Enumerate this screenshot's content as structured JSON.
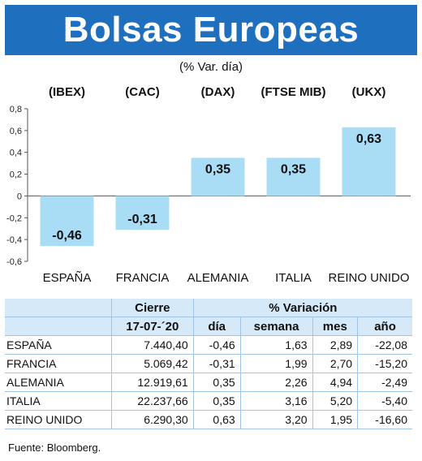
{
  "title": "Bolsas Europeas",
  "subtitle": "(% Var. día)",
  "chart_data": {
    "type": "bar",
    "indices": [
      "(IBEX)",
      "(CAC)",
      "(DAX)",
      "(FTSE MIB)",
      "(UKX)"
    ],
    "categories": [
      "ESPAÑA",
      "FRANCIA",
      "ALEMANIA",
      "ITALIA",
      "REINO UNIDO"
    ],
    "values": [
      -0.46,
      -0.31,
      0.35,
      0.35,
      0.63
    ],
    "value_labels": [
      "-0,46",
      "-0,31",
      "0,35",
      "0,35",
      "0,63"
    ],
    "ylim": [
      -0.6,
      0.8
    ],
    "yticks": [
      0.8,
      0.6,
      0.4,
      0.2,
      0,
      -0.2,
      -0.4,
      -0.6
    ],
    "ytick_labels": [
      "0,8",
      "0,6",
      "0,4",
      "0,2",
      "0",
      "-0,2",
      "-0,4",
      "-0,6"
    ],
    "bar_color": "#a9dcf5",
    "grid": false
  },
  "table": {
    "group_headers": [
      "Cierre",
      "% Variación"
    ],
    "columns": [
      "17-07-´20",
      "día",
      "semana",
      "mes",
      "año"
    ],
    "rows": [
      {
        "name": "ESPAÑA",
        "cierre": "7.440,40",
        "dia": "-0,46",
        "semana": "1,63",
        "mes": "2,89",
        "ano": "-22,08"
      },
      {
        "name": "FRANCIA",
        "cierre": "5.069,42",
        "dia": "-0,31",
        "semana": "1,99",
        "mes": "2,70",
        "ano": "-15,20"
      },
      {
        "name": "ALEMANIA",
        "cierre": "12.919,61",
        "dia": "0,35",
        "semana": "2,26",
        "mes": "4,94",
        "ano": "-2,49"
      },
      {
        "name": "ITALIA",
        "cierre": "22.237,66",
        "dia": "0,35",
        "semana": "3,16",
        "mes": "5,20",
        "ano": "-5,40"
      },
      {
        "name": "REINO UNIDO",
        "cierre": "6.290,30",
        "dia": "0,63",
        "semana": "3,20",
        "mes": "1,95",
        "ano": "-16,60"
      }
    ]
  },
  "source": "Fuente: Bloomberg.",
  "colors": {
    "banner": "#1f6fbf",
    "header_bg": "#d6e9f8",
    "rule": "#9fc4e6"
  }
}
